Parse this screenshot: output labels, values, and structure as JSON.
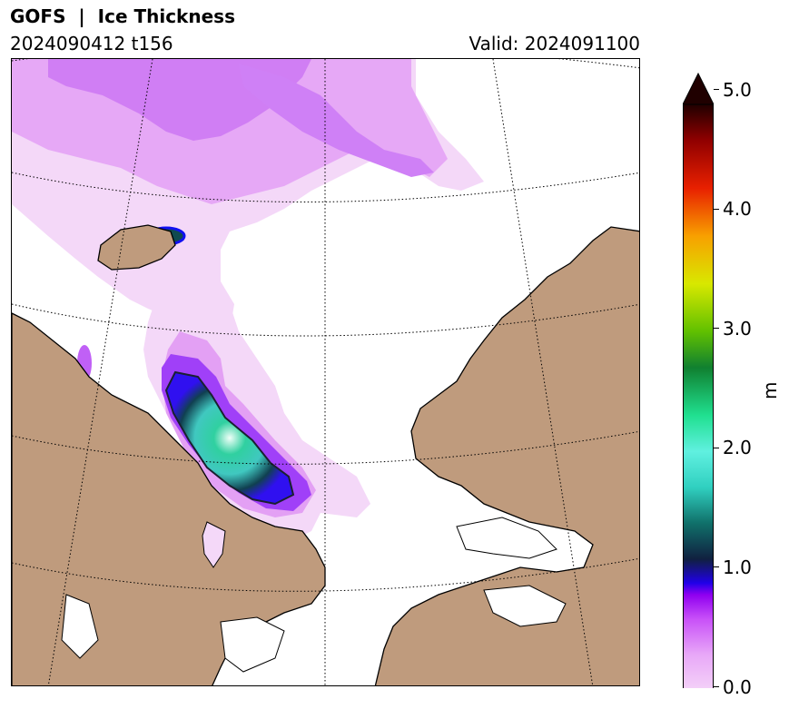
{
  "header": {
    "title": "GOFS  |  Ice Thickness",
    "run": "2024090412 t156",
    "valid": "Valid: 2024091100"
  },
  "map": {
    "land_color": "#bf9b7d",
    "coast_color": "#000000",
    "ocean_color": "#ffffff",
    "grid_style": "dotted"
  },
  "colorbar": {
    "unit_label": "m",
    "ticks": [
      "0.0",
      "1.0",
      "2.0",
      "3.0",
      "4.0",
      "5.0"
    ],
    "min": 0.0,
    "max": 5.0,
    "extend": "max",
    "colors": [
      "#f8e0f8",
      "#e8a8f8",
      "#c850f8",
      "#9000f0",
      "#2000e8",
      "#102040",
      "#10706a",
      "#30d0c0",
      "#60f0e0",
      "#20e090",
      "#108030",
      "#60c000",
      "#d8e800",
      "#f8a000",
      "#e82000",
      "#900000",
      "#200000"
    ]
  }
}
